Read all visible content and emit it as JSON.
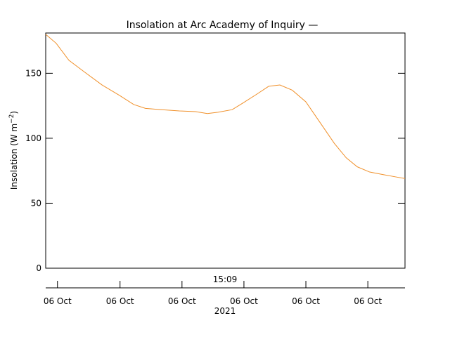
{
  "chart_data": {
    "type": "line",
    "title": "Insolation at Arc Academy of Inquiry —",
    "ylabel": [
      "Insolation (W m",
      "−2",
      ")"
    ],
    "xlabel": "15:09",
    "xlabel2": "2021",
    "x": [
      0,
      0.17,
      0.375,
      0.625,
      0.91,
      1.19,
      1.42,
      1.61,
      1.875,
      2.16,
      2.42,
      2.61,
      2.78,
      3.01,
      3.18,
      3.41,
      3.6,
      3.78,
      3.98,
      4.2,
      4.43,
      4.66,
      4.85,
      5.03,
      5.23,
      5.45,
      5.68,
      5.8
    ],
    "series": [
      {
        "name": "Insolation",
        "color": "#f0902a",
        "values": [
          180,
          173,
          160,
          151,
          141,
          133,
          126,
          123,
          122,
          121,
          120.5,
          119,
          120,
          122,
          127,
          134,
          140,
          141,
          137,
          128,
          112,
          96,
          85,
          78,
          74,
          72,
          70,
          69
        ]
      }
    ],
    "xlim": [
      0,
      5.8
    ],
    "xticks": [
      {
        "value": 0.19,
        "label": "06 Oct"
      },
      {
        "value": 1.2,
        "label": "06 Oct"
      },
      {
        "value": 2.2,
        "label": "06 Oct"
      },
      {
        "value": 3.2,
        "label": "06 Oct"
      },
      {
        "value": 4.2,
        "label": "06 Oct"
      },
      {
        "value": 5.2,
        "label": "06 Oct"
      }
    ],
    "ylim": [
      0,
      181
    ],
    "yticks": [
      0,
      50,
      100,
      150
    ]
  }
}
